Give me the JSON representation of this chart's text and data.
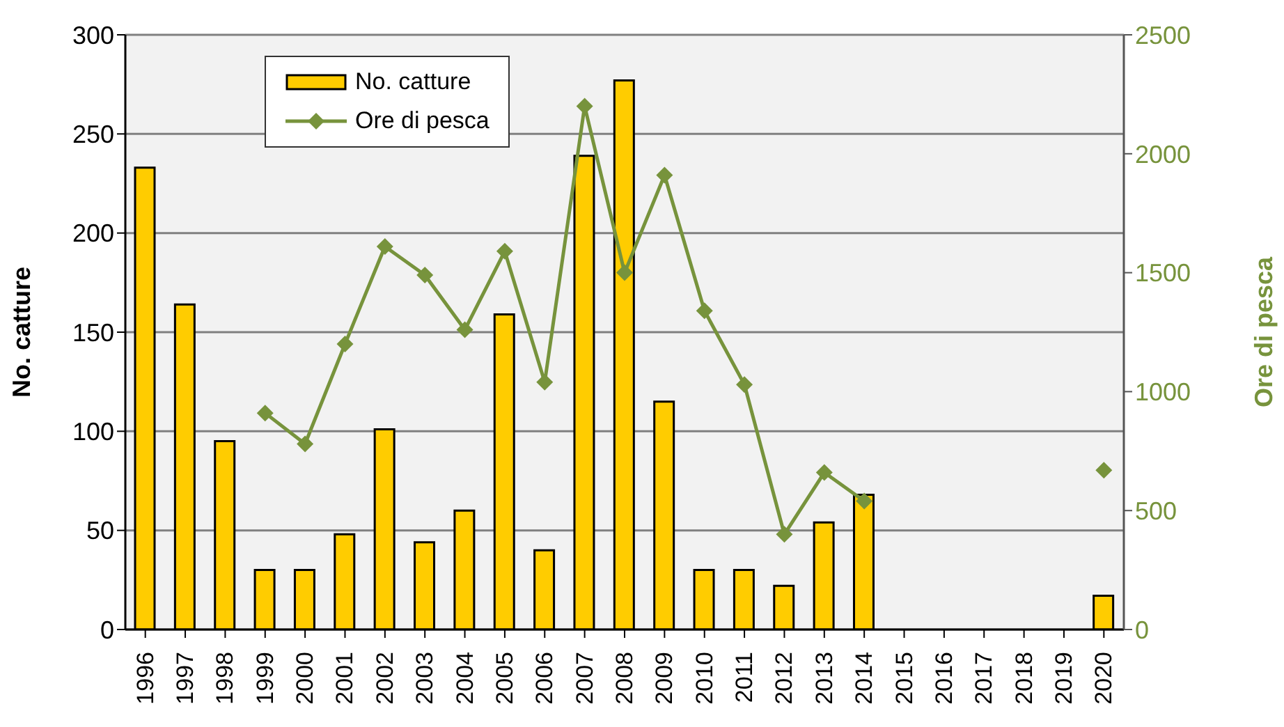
{
  "chart_data": {
    "type": "bar",
    "xlabel": null,
    "ylabel": "No. catture",
    "y2label": "Ore di pesca",
    "categories": [
      "1996",
      "1997",
      "1998",
      "1999",
      "2000",
      "2001",
      "2002",
      "2003",
      "2004",
      "2005",
      "2006",
      "2007",
      "2008",
      "2009",
      "2010",
      "2011",
      "2012",
      "2013",
      "2014",
      "2015",
      "2016",
      "2017",
      "2018",
      "2019",
      "2020"
    ],
    "series": [
      {
        "name": "No. catture",
        "color": "#ffcc00",
        "values": [
          233,
          164,
          95,
          30,
          30,
          48,
          101,
          44,
          60,
          159,
          40,
          239,
          277,
          115,
          30,
          30,
          22,
          54,
          68,
          null,
          null,
          null,
          null,
          null,
          17
        ]
      },
      {
        "name": "Ore di pesca",
        "type": "line",
        "axis": "y2",
        "color": "#77933c",
        "marker": "diamond",
        "values": [
          null,
          null,
          null,
          910,
          780,
          1200,
          1610,
          1490,
          1260,
          1590,
          1040,
          2200,
          1500,
          1910,
          1340,
          1030,
          400,
          660,
          540,
          null,
          null,
          null,
          null,
          null,
          670
        ]
      }
    ],
    "ylim": [
      0,
      300
    ],
    "yticks": [
      0,
      50,
      100,
      150,
      200,
      250,
      300
    ],
    "y2lim": [
      0,
      2500
    ],
    "y2ticks": [
      0,
      500,
      1000,
      1500,
      2000,
      2500
    ],
    "grid": "y",
    "legend": "top left"
  }
}
